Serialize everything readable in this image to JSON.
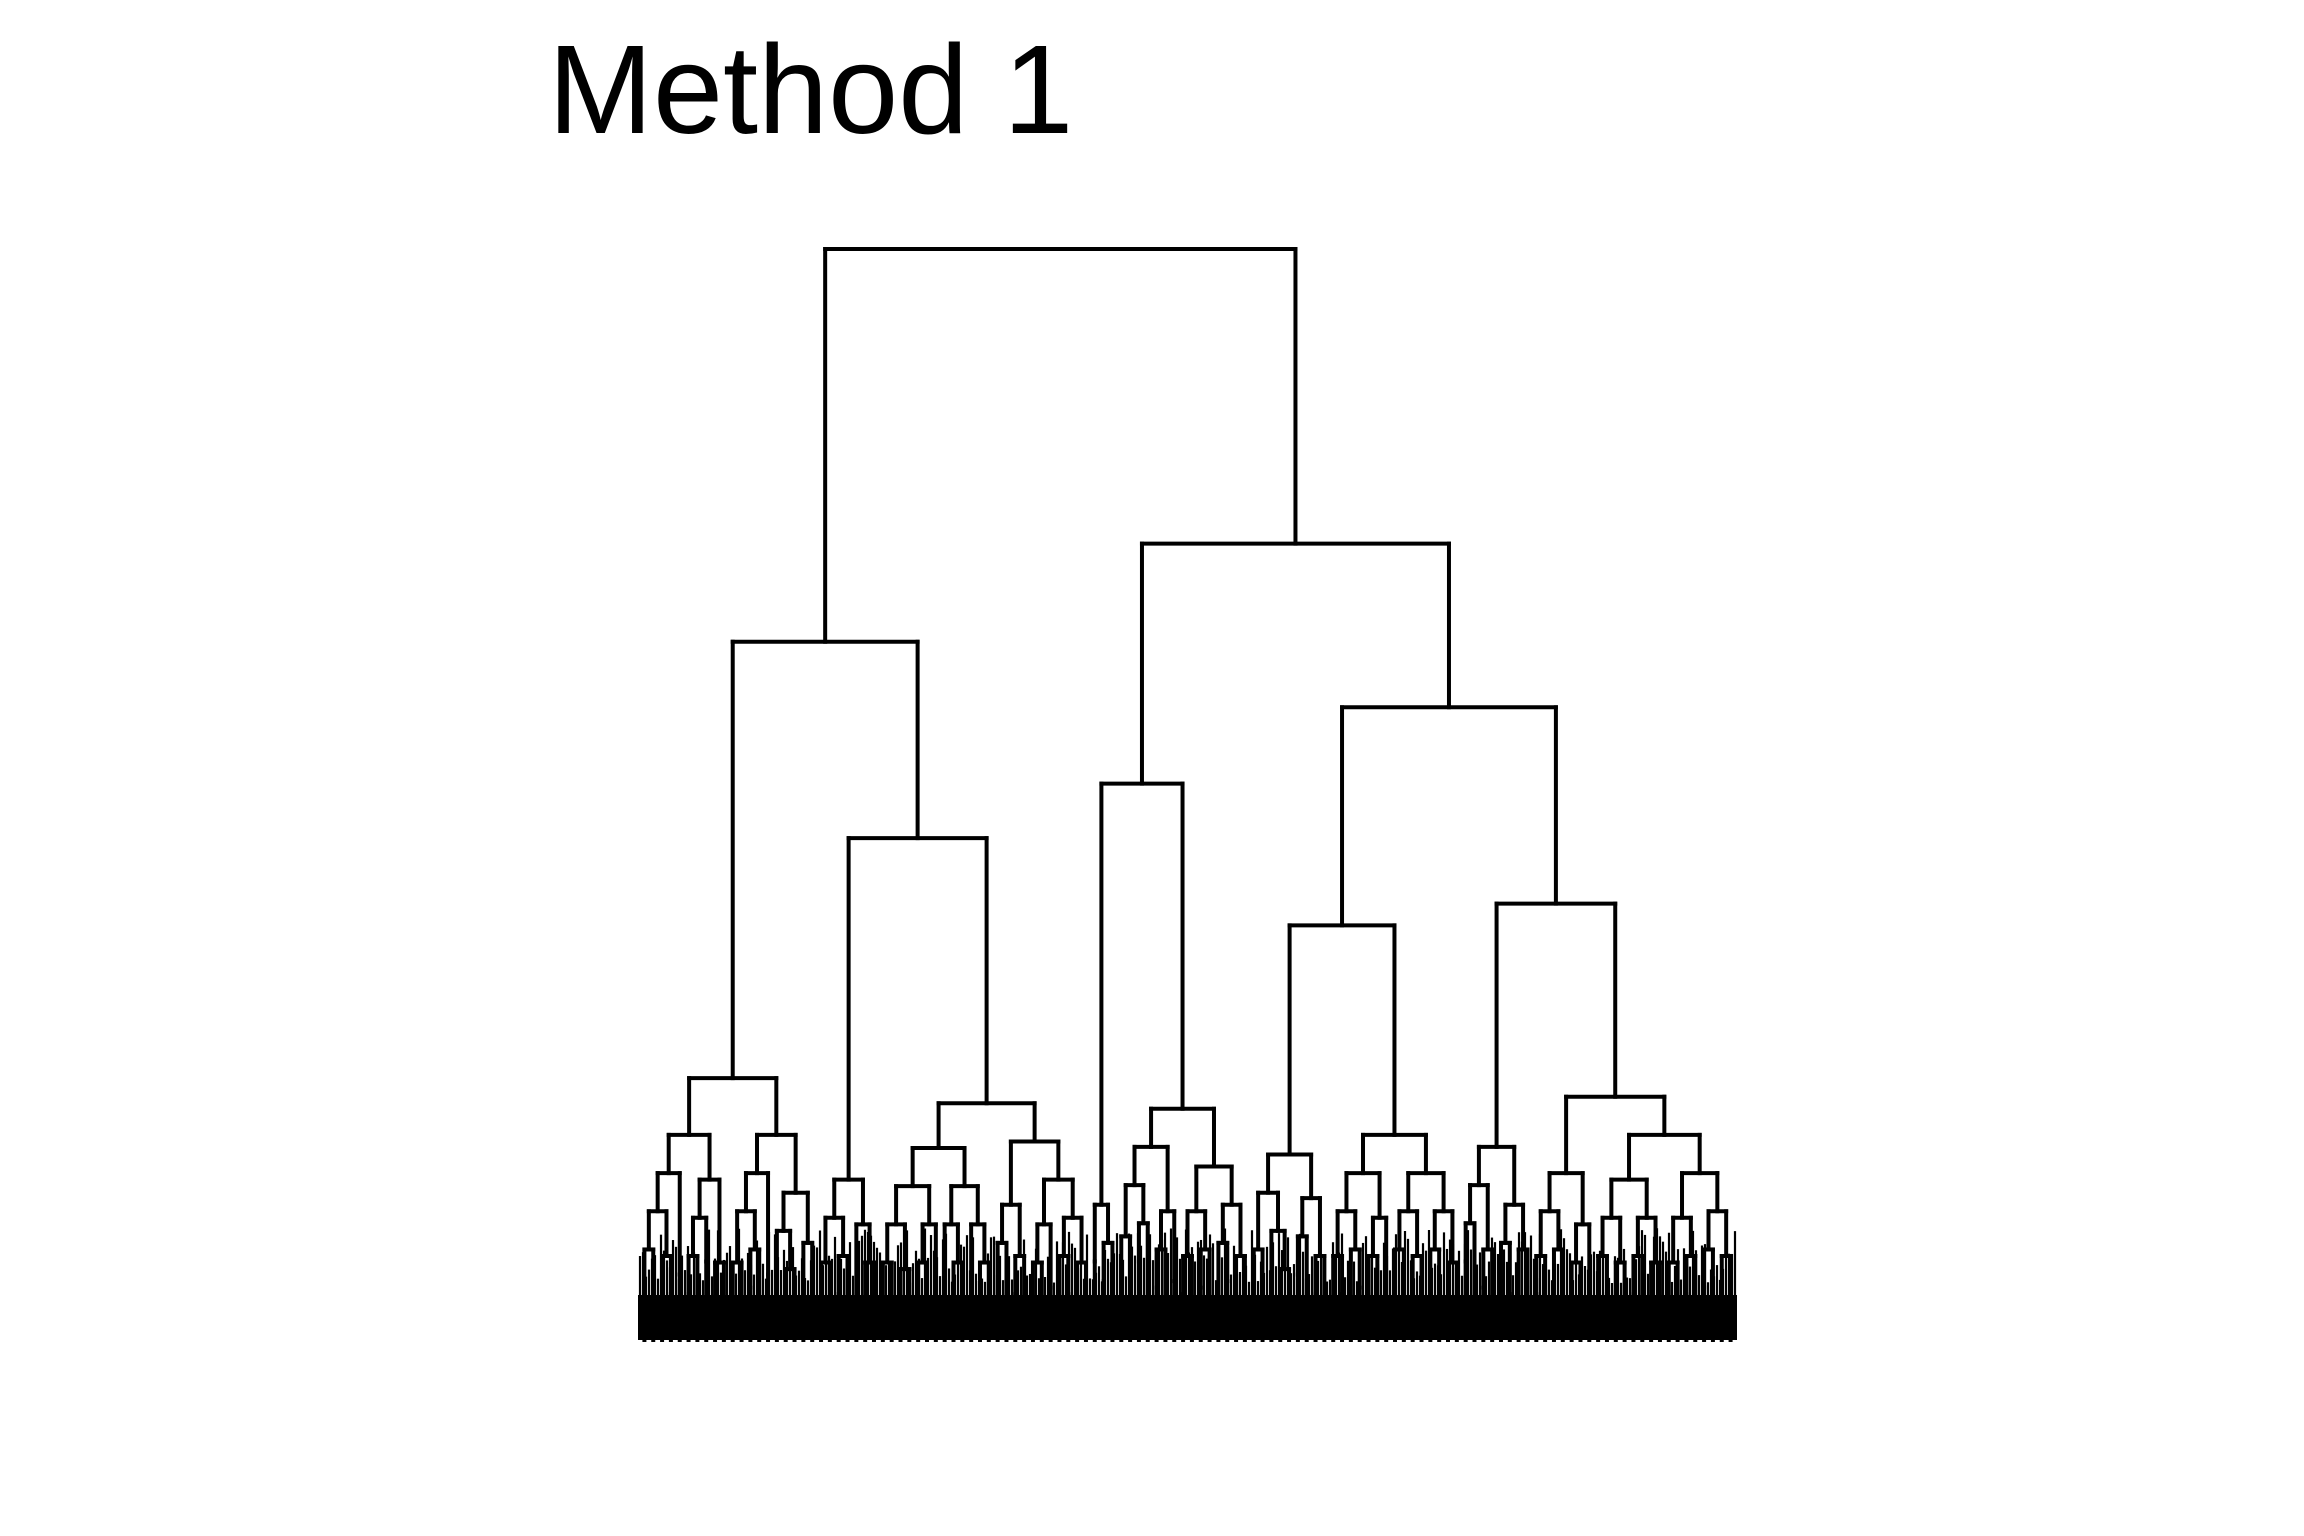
{
  "title": "Method 1",
  "colors": {
    "background": "#ffffff",
    "line": "#000000"
  },
  "chart_data": {
    "type": "dendrogram",
    "xlabel": "",
    "ylabel": "",
    "axes": "none",
    "leaf_labels": "none",
    "n_leaves_approx": 450,
    "root_height": 1.0,
    "tree": [
      [
        [
          [
            [
              [
                [
                  [
                    0.08,
                    0.06
                  ],
                  [
                    0.05,
                    0.07
                  ]
                ],
                0.1
              ],
              [
                [
                  [
                    0.07,
                    0.05
                  ],
                  0.12
                ],
                [
                  0.06,
                  0.04
                ]
              ]
            ],
            [
              [
                [
                  [
                    0.06,
                    0.05
                  ],
                  [
                    0.08,
                    0.04
                  ]
                ],
                0.1
              ],
              [
                [
                  0.06,
                  [
                    0.05,
                    0.04
                  ]
                ],
                [
                  0.07,
                  0.09
                ]
              ]
            ]
          ],
          [
            [
              [
                [
                  0.06,
                  0.05
                ],
                [
                  0.07,
                  0.04
                ]
              ],
              [
                0.05,
                [
                  0.06,
                  0.03
                ]
              ]
            ],
            [
              [
                [
                  [
                    [
                      0.05,
                      0.06
                    ],
                    [
                      0.04,
                      0.05
                    ]
                  ],
                  [
                    [
                      0.06,
                      0.04
                    ],
                    0.07
                  ]
                ],
                [
                  [
                    0.08,
                    [
                      0.05,
                      0.06
                    ]
                  ],
                  [
                    0.1,
                    [
                      0.06,
                      0.05
                    ]
                  ]
                ]
              ],
              [
                [
                  [
                    0.06,
                    0.09
                  ],
                  [
                    0.07,
                    0.05
                  ]
                ],
                [
                  [
                    [
                      0.06,
                      0.04
                    ],
                    0.08
                  ],
                  [
                    [
                      0.05,
                      0.07
                    ],
                    [
                      0.06,
                      0.04
                    ]
                  ]
                ]
              ]
            ]
          ]
        ],
        [
          [
            [
              0.12,
              [
                0.09,
                0.08
              ]
            ],
            [
              [
                [
                  [
                    0.1,
                    0.07
                  ],
                  [
                    0.12,
                    0.06
                  ]
                ],
                [
                  [
                    0.08,
                    0.05
                  ],
                  0.09
                ]
              ],
              [
                [
                  [
                    0.07,
                    0.06
                  ],
                  [
                    0.08,
                    0.05
                  ]
                ],
                [
                  [
                    0.06,
                    0.09
                  ],
                  [
                    0.07,
                    0.05
                  ]
                ]
              ]
            ]
          ],
          [
            [
              [
                [
                  [
                    0.08,
                    0.06
                  ],
                  [
                    0.07,
                    [
                      0.05,
                      0.04
                    ]
                  ]
                ],
                [
                  [
                    0.1,
                    0.06
                  ],
                  [
                    0.07,
                    0.05
                  ]
                ]
              ],
              [
                [
                  [
                    [
                      0.06,
                      0.07
                    ],
                    [
                      0.05,
                      0.08
                    ]
                  ],
                  [
                    [
                      0.07,
                      0.05
                    ],
                    0.06
                  ]
                ],
                [
                  [
                    [
                      0.08,
                      0.06
                    ],
                    [
                      0.05,
                      0.07
                    ]
                  ],
                  [
                    [
                      0.06,
                      0.08
                    ],
                    [
                      0.05,
                      0.06
                    ]
                  ]
                ]
              ]
            ],
            [
              [
                [
                  [
                    0.12,
                    0.06
                  ],
                  [
                    0.08,
                    0.05
                  ]
                ],
                [
                  [
                    0.09,
                    0.07
                  ],
                  [
                    0.06,
                    0.08
                  ]
                ]
              ],
              [
                [
                  [
                    [
                      0.07,
                      0.05
                    ],
                    [
                      0.08,
                      0.06
                    ]
                  ],
                  [
                    [
                      0.06,
                      0.05
                    ],
                    0.07
                  ]
                ],
                [
                  [
                    [
                      [
                        0.06,
                        0.07
                      ],
                      [
                        0.05,
                        0.06
                      ]
                    ],
                    [
                      [
                        0.07,
                        0.05
                      ],
                      [
                        0.06,
                        0.04
                      ]
                    ]
                  ],
                  [
                    [
                      [
                        0.06,
                        0.05
                      ],
                      [
                        0.07,
                        0.06
                      ]
                    ],
                    [
                      [
                        0.08,
                        0.05
                      ],
                      [
                        0.06,
                        0.07
                      ]
                    ]
                  ]
                ]
              ]
            ]
          ]
        ]
      ]
    ]
  }
}
